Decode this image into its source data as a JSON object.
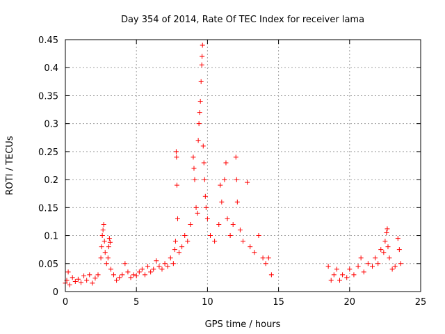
{
  "chart_data": {
    "type": "scatter",
    "title": "Day 354 of 2014, Rate Of TEC Index for receiver lama",
    "xlabel": "GPS time / hours",
    "ylabel": "ROTI / TECUs",
    "xlim": [
      0,
      25
    ],
    "ylim": [
      0,
      0.45
    ],
    "xticks": [
      0,
      5,
      10,
      15,
      20,
      25
    ],
    "xtick_labels": [
      "0",
      "5",
      "10",
      "15",
      "20",
      "25"
    ],
    "yticks": [
      0,
      0.05,
      0.1,
      0.15,
      0.2,
      0.25,
      0.3,
      0.35,
      0.4,
      0.45
    ],
    "ytick_labels": [
      "0",
      "0.05",
      "0.1",
      "0.15",
      "0.2",
      "0.25",
      "0.3",
      "0.35",
      "0.4",
      "0.45"
    ],
    "grid": true,
    "marker": "+",
    "color": "#ff0000",
    "series": [
      {
        "name": "ROTI",
        "points": [
          [
            0.0,
            0.015
          ],
          [
            0.1,
            0.02
          ],
          [
            0.2,
            0.035
          ],
          [
            0.3,
            0.012
          ],
          [
            0.5,
            0.025
          ],
          [
            0.7,
            0.018
          ],
          [
            0.9,
            0.022
          ],
          [
            1.1,
            0.016
          ],
          [
            1.3,
            0.028
          ],
          [
            1.5,
            0.02
          ],
          [
            1.7,
            0.03
          ],
          [
            1.9,
            0.015
          ],
          [
            2.1,
            0.024
          ],
          [
            2.3,
            0.03
          ],
          [
            2.5,
            0.06
          ],
          [
            2.55,
            0.08
          ],
          [
            2.6,
            0.1
          ],
          [
            2.65,
            0.11
          ],
          [
            2.7,
            0.12
          ],
          [
            2.75,
            0.09
          ],
          [
            2.8,
            0.07
          ],
          [
            2.9,
            0.05
          ],
          [
            3.0,
            0.06
          ],
          [
            3.05,
            0.08
          ],
          [
            3.1,
            0.095
          ],
          [
            3.15,
            0.088
          ],
          [
            3.2,
            0.04
          ],
          [
            3.4,
            0.03
          ],
          [
            3.6,
            0.02
          ],
          [
            3.8,
            0.025
          ],
          [
            4.0,
            0.03
          ],
          [
            4.2,
            0.05
          ],
          [
            4.4,
            0.035
          ],
          [
            4.6,
            0.025
          ],
          [
            4.8,
            0.03
          ],
          [
            5.0,
            0.028
          ],
          [
            5.2,
            0.035
          ],
          [
            5.4,
            0.04
          ],
          [
            5.6,
            0.03
          ],
          [
            5.8,
            0.045
          ],
          [
            6.0,
            0.035
          ],
          [
            6.2,
            0.04
          ],
          [
            6.4,
            0.055
          ],
          [
            6.6,
            0.045
          ],
          [
            6.8,
            0.04
          ],
          [
            7.0,
            0.05
          ],
          [
            7.2,
            0.045
          ],
          [
            7.4,
            0.06
          ],
          [
            7.6,
            0.05
          ],
          [
            7.7,
            0.075
          ],
          [
            7.75,
            0.09
          ],
          [
            7.8,
            0.25
          ],
          [
            7.82,
            0.24
          ],
          [
            7.85,
            0.19
          ],
          [
            7.9,
            0.13
          ],
          [
            8.0,
            0.07
          ],
          [
            8.2,
            0.08
          ],
          [
            8.4,
            0.1
          ],
          [
            8.6,
            0.09
          ],
          [
            8.8,
            0.12
          ],
          [
            9.0,
            0.24
          ],
          [
            9.05,
            0.22
          ],
          [
            9.1,
            0.2
          ],
          [
            9.2,
            0.15
          ],
          [
            9.3,
            0.14
          ],
          [
            9.35,
            0.27
          ],
          [
            9.4,
            0.3
          ],
          [
            9.45,
            0.32
          ],
          [
            9.5,
            0.34
          ],
          [
            9.55,
            0.375
          ],
          [
            9.6,
            0.405
          ],
          [
            9.62,
            0.42
          ],
          [
            9.65,
            0.44
          ],
          [
            9.7,
            0.26
          ],
          [
            9.75,
            0.23
          ],
          [
            9.8,
            0.2
          ],
          [
            9.85,
            0.17
          ],
          [
            9.9,
            0.15
          ],
          [
            10.0,
            0.13
          ],
          [
            10.2,
            0.1
          ],
          [
            10.5,
            0.09
          ],
          [
            10.8,
            0.12
          ],
          [
            10.9,
            0.19
          ],
          [
            11.0,
            0.16
          ],
          [
            11.2,
            0.2
          ],
          [
            11.3,
            0.23
          ],
          [
            11.4,
            0.13
          ],
          [
            11.6,
            0.1
          ],
          [
            11.8,
            0.12
          ],
          [
            12.0,
            0.24
          ],
          [
            12.05,
            0.2
          ],
          [
            12.1,
            0.16
          ],
          [
            12.3,
            0.11
          ],
          [
            12.5,
            0.09
          ],
          [
            12.8,
            0.195
          ],
          [
            13.0,
            0.08
          ],
          [
            13.3,
            0.07
          ],
          [
            13.6,
            0.1
          ],
          [
            13.9,
            0.06
          ],
          [
            14.1,
            0.05
          ],
          [
            14.3,
            0.06
          ],
          [
            14.5,
            0.03
          ],
          [
            18.5,
            0.045
          ],
          [
            18.7,
            0.02
          ],
          [
            18.9,
            0.03
          ],
          [
            19.1,
            0.04
          ],
          [
            19.3,
            0.02
          ],
          [
            19.5,
            0.03
          ],
          [
            19.8,
            0.025
          ],
          [
            20.0,
            0.04
          ],
          [
            20.3,
            0.03
          ],
          [
            20.6,
            0.045
          ],
          [
            20.8,
            0.06
          ],
          [
            21.0,
            0.035
          ],
          [
            21.3,
            0.05
          ],
          [
            21.6,
            0.045
          ],
          [
            21.8,
            0.06
          ],
          [
            22.0,
            0.05
          ],
          [
            22.2,
            0.075
          ],
          [
            22.4,
            0.07
          ],
          [
            22.5,
            0.09
          ],
          [
            22.6,
            0.105
          ],
          [
            22.65,
            0.112
          ],
          [
            22.7,
            0.08
          ],
          [
            22.8,
            0.06
          ],
          [
            23.0,
            0.04
          ],
          [
            23.2,
            0.045
          ],
          [
            23.4,
            0.095
          ],
          [
            23.5,
            0.075
          ],
          [
            23.6,
            0.05
          ]
        ]
      }
    ]
  }
}
